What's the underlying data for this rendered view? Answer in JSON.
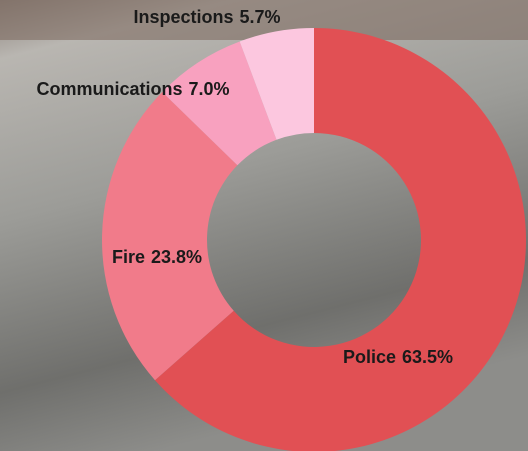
{
  "chart_data": {
    "type": "donut",
    "categories": [
      "Police",
      "Fire",
      "Communications",
      "Inspections"
    ],
    "values": [
      63.5,
      23.8,
      7.0,
      5.7
    ],
    "value_labels": [
      "63.5%",
      "23.8%",
      "7.0%",
      "5.7%"
    ],
    "colors": [
      "#e15054",
      "#f17b8a",
      "#f8a1bf",
      "#fcc7df"
    ]
  }
}
